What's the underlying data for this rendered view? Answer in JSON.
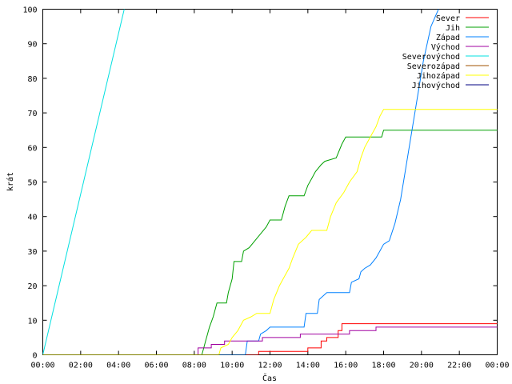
{
  "chart_data": {
    "type": "line",
    "xlabel": "Čas",
    "ylabel": "krát",
    "xlim": [
      0,
      24
    ],
    "ylim": [
      0,
      100
    ],
    "x_ticks": [
      "00:00",
      "02:00",
      "04:00",
      "06:00",
      "08:00",
      "10:00",
      "12:00",
      "14:00",
      "16:00",
      "18:00",
      "20:00",
      "22:00",
      "00:00"
    ],
    "y_ticks": [
      0,
      10,
      20,
      30,
      40,
      50,
      60,
      70,
      80,
      90,
      100
    ],
    "grid": false,
    "legend_position": "top-right",
    "series": [
      {
        "name": "Sever",
        "color": "#ff0000",
        "points": [
          [
            0,
            0
          ],
          [
            11.4,
            0
          ],
          [
            11.4,
            1
          ],
          [
            14,
            1
          ],
          [
            14,
            2
          ],
          [
            14.7,
            2
          ],
          [
            14.7,
            4
          ],
          [
            15,
            4
          ],
          [
            15,
            5
          ],
          [
            15.6,
            5
          ],
          [
            15.6,
            7
          ],
          [
            15.8,
            7
          ],
          [
            15.8,
            9
          ],
          [
            24,
            9
          ]
        ]
      },
      {
        "name": "Jih",
        "color": "#00a000",
        "points": [
          [
            0,
            0
          ],
          [
            8.4,
            0
          ],
          [
            8.5,
            2
          ],
          [
            8.6,
            4
          ],
          [
            8.7,
            6
          ],
          [
            8.8,
            8
          ],
          [
            9,
            11
          ],
          [
            9.2,
            15
          ],
          [
            9.7,
            15
          ],
          [
            9.8,
            18
          ],
          [
            10,
            22
          ],
          [
            10.1,
            27
          ],
          [
            10.5,
            27
          ],
          [
            10.6,
            30
          ],
          [
            10.9,
            31
          ],
          [
            11.2,
            33
          ],
          [
            11.5,
            35
          ],
          [
            11.8,
            37
          ],
          [
            12,
            39
          ],
          [
            12.6,
            39
          ],
          [
            12.8,
            43
          ],
          [
            13,
            46
          ],
          [
            13.8,
            46
          ],
          [
            14,
            49
          ],
          [
            14.2,
            51
          ],
          [
            14.4,
            53
          ],
          [
            14.7,
            55
          ],
          [
            14.9,
            56
          ],
          [
            15.5,
            57
          ],
          [
            15.8,
            61
          ],
          [
            16,
            63
          ],
          [
            17.9,
            63
          ],
          [
            18,
            65
          ],
          [
            24,
            65
          ]
        ]
      },
      {
        "name": "Západ",
        "color": "#0080ff",
        "points": [
          [
            0,
            0
          ],
          [
            10.7,
            0
          ],
          [
            10.8,
            4
          ],
          [
            11.4,
            4
          ],
          [
            11.5,
            6
          ],
          [
            11.8,
            7
          ],
          [
            12,
            8
          ],
          [
            13.8,
            8
          ],
          [
            13.9,
            12
          ],
          [
            14.5,
            12
          ],
          [
            14.6,
            16
          ],
          [
            15,
            18
          ],
          [
            16.2,
            18
          ],
          [
            16.3,
            21
          ],
          [
            16.7,
            22
          ],
          [
            16.8,
            24
          ],
          [
            17,
            25
          ],
          [
            17.3,
            26
          ],
          [
            17.6,
            28
          ],
          [
            17.8,
            30
          ],
          [
            18,
            32
          ],
          [
            18.3,
            33
          ],
          [
            18.6,
            38
          ],
          [
            18.9,
            45
          ],
          [
            19.2,
            55
          ],
          [
            19.5,
            65
          ],
          [
            19.8,
            75
          ],
          [
            20.1,
            85
          ],
          [
            20.5,
            95
          ],
          [
            20.9,
            100
          ]
        ]
      },
      {
        "name": "Východ",
        "color": "#a000a0",
        "points": [
          [
            0,
            0
          ],
          [
            8.2,
            0
          ],
          [
            8.2,
            2
          ],
          [
            8.9,
            2
          ],
          [
            8.9,
            3
          ],
          [
            9.6,
            3
          ],
          [
            9.6,
            4
          ],
          [
            11.6,
            4
          ],
          [
            11.6,
            5
          ],
          [
            13.6,
            5
          ],
          [
            13.6,
            6
          ],
          [
            16.2,
            6
          ],
          [
            16.2,
            7
          ],
          [
            17.6,
            7
          ],
          [
            17.6,
            8
          ],
          [
            24,
            8
          ]
        ]
      },
      {
        "name": "Severovýchod",
        "color": "#00e0e0",
        "points": [
          [
            0,
            0
          ],
          [
            4.3,
            100
          ]
        ]
      },
      {
        "name": "Severozápad",
        "color": "#a05000",
        "points": []
      },
      {
        "name": "Jihozápad",
        "color": "#ffff00",
        "points": [
          [
            0,
            0
          ],
          [
            9.3,
            0
          ],
          [
            9.4,
            2
          ],
          [
            9.8,
            3
          ],
          [
            10,
            5
          ],
          [
            10.3,
            7
          ],
          [
            10.6,
            10
          ],
          [
            11,
            11
          ],
          [
            11.3,
            12
          ],
          [
            12,
            12
          ],
          [
            12.2,
            16
          ],
          [
            12.5,
            20
          ],
          [
            12.8,
            23
          ],
          [
            13,
            25
          ],
          [
            13.2,
            28
          ],
          [
            13.5,
            32
          ],
          [
            13.9,
            34
          ],
          [
            14.2,
            36
          ],
          [
            15,
            36
          ],
          [
            15.2,
            40
          ],
          [
            15.5,
            44
          ],
          [
            15.9,
            47
          ],
          [
            16.2,
            50
          ],
          [
            16.6,
            53
          ],
          [
            16.8,
            57
          ],
          [
            17,
            60
          ],
          [
            17.3,
            63
          ],
          [
            17.6,
            66
          ],
          [
            17.8,
            69
          ],
          [
            18,
            71
          ],
          [
            24,
            71
          ]
        ]
      },
      {
        "name": "Jihovýchod",
        "color": "#000080",
        "points": []
      }
    ]
  }
}
